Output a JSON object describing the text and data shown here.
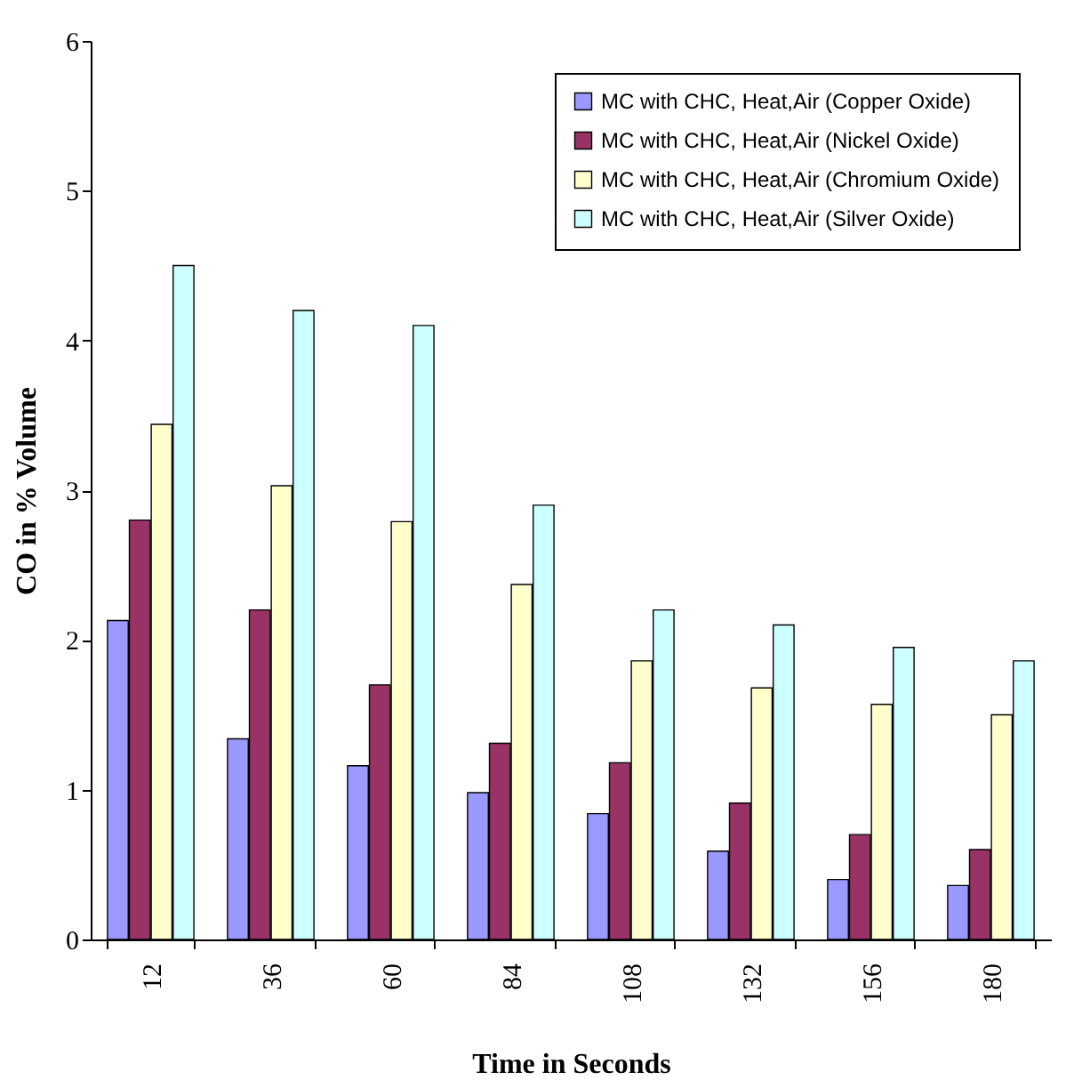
{
  "chart_data": {
    "type": "bar",
    "xlabel": "Time in Seconds",
    "ylabel": "CO in % Volume",
    "categories": [
      "12",
      "36",
      "60",
      "84",
      "108",
      "132",
      "156",
      "180"
    ],
    "series": [
      {
        "name": "MC with CHC, Heat,Air (Copper Oxide)",
        "color": "#9999ff",
        "values": [
          2.13,
          1.34,
          1.16,
          0.98,
          0.84,
          0.59,
          0.4,
          0.36
        ]
      },
      {
        "name": "MC with CHC, Heat,Air (Nickel Oxide)",
        "color": "#993366",
        "values": [
          2.8,
          2.2,
          1.7,
          1.31,
          1.18,
          0.91,
          0.7,
          0.6
        ]
      },
      {
        "name": "MC with CHC, Heat,Air (Chromium Oxide)",
        "color": "#ffffcc",
        "values": [
          3.44,
          3.03,
          2.79,
          2.37,
          1.86,
          1.68,
          1.57,
          1.5
        ]
      },
      {
        "name": "MC with CHC, Heat,Air (Silver Oxide)",
        "color": "#ccffff",
        "values": [
          4.5,
          4.2,
          4.1,
          2.9,
          2.2,
          2.1,
          1.95,
          1.86
        ]
      }
    ],
    "ylim": [
      0,
      6
    ],
    "yticks": [
      0,
      1,
      2,
      3,
      4,
      5,
      6
    ],
    "grid": false,
    "legend": "top right"
  }
}
